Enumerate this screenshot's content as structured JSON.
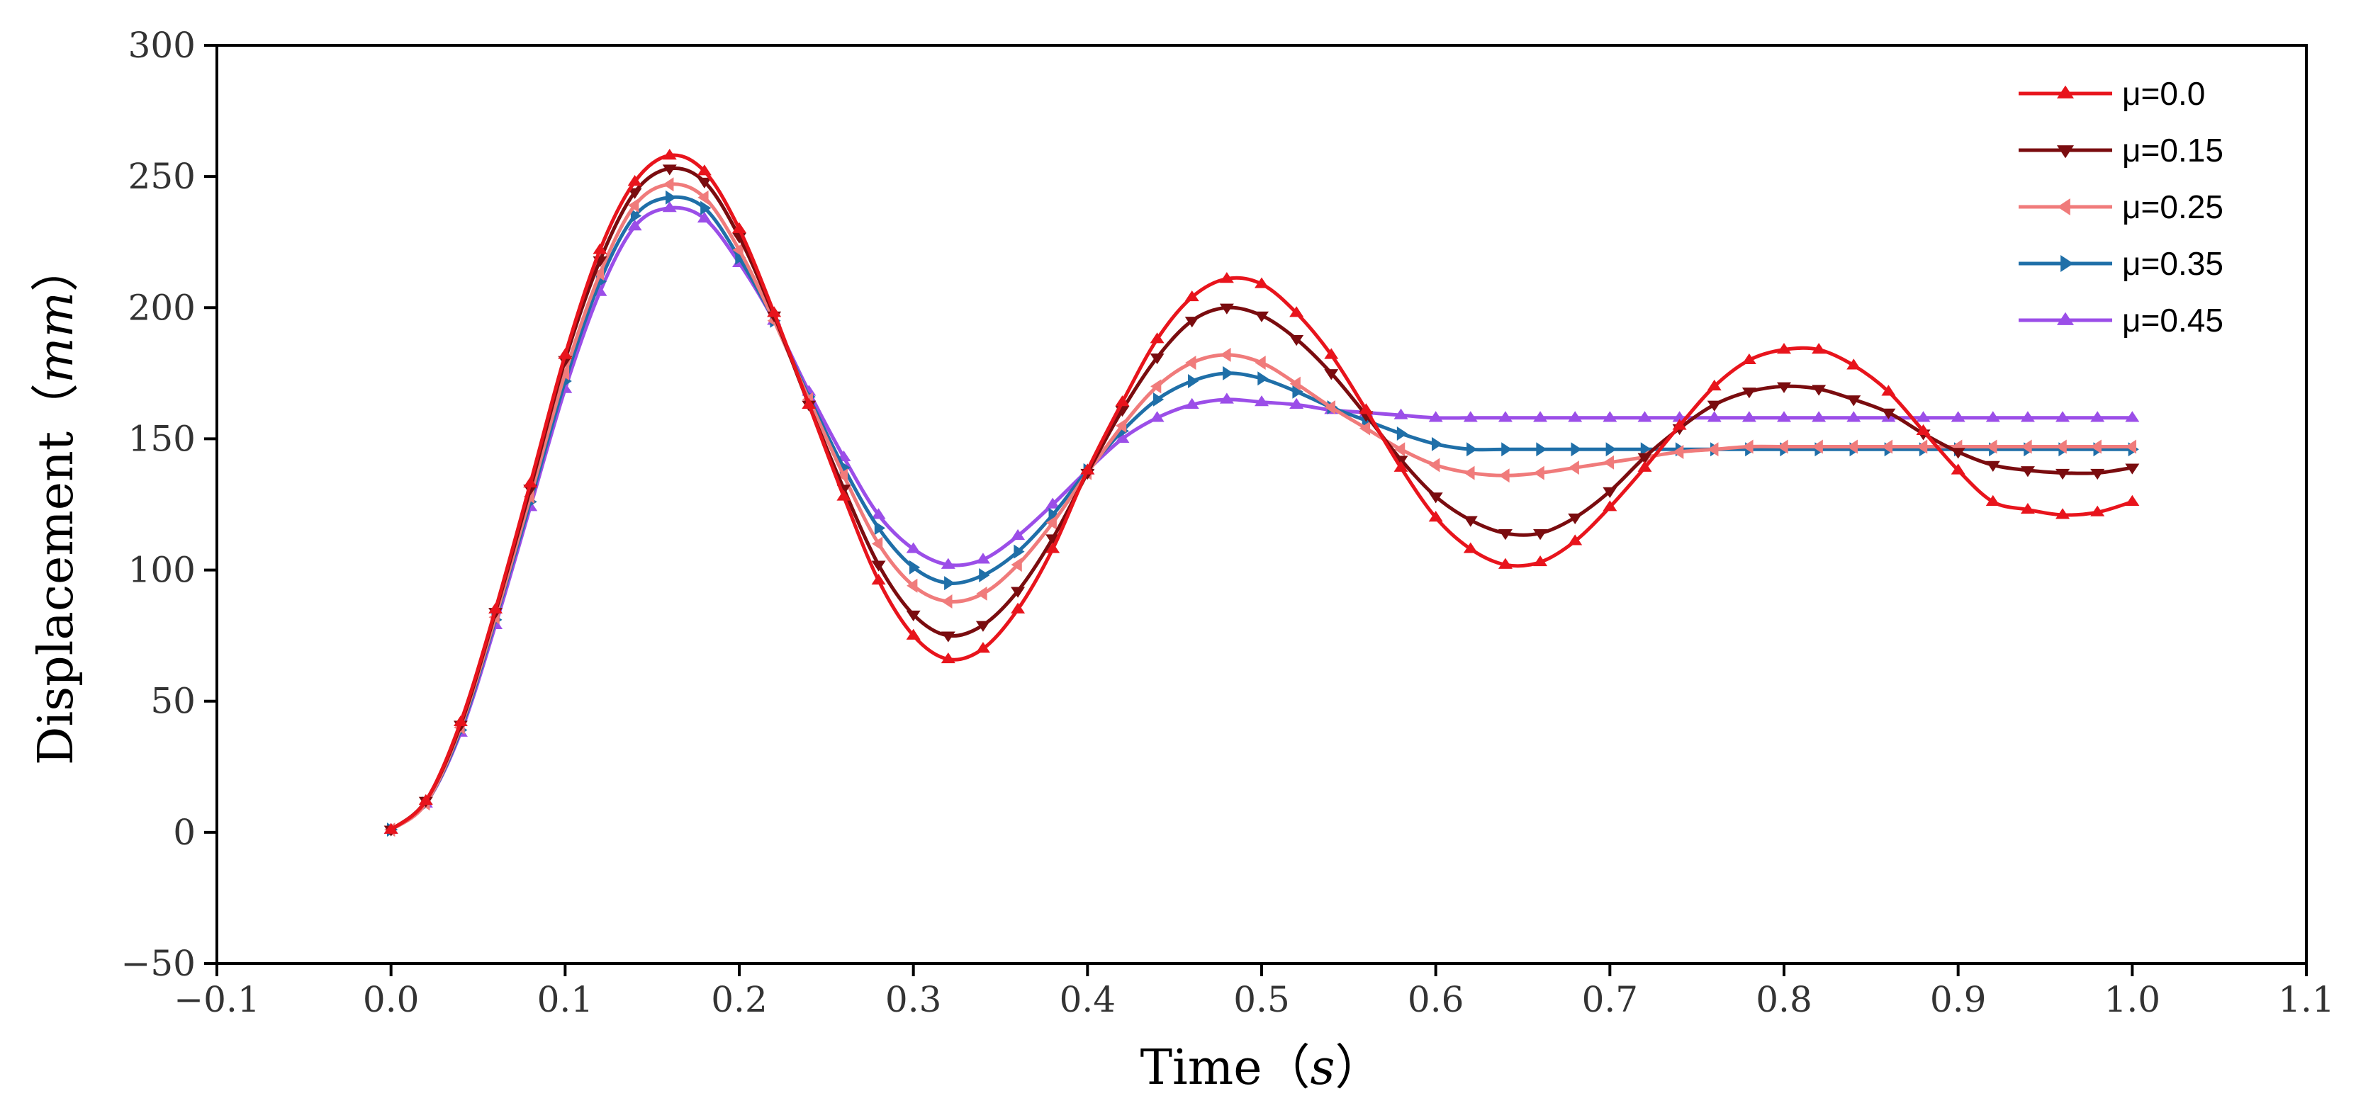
{
  "chart_data": {
    "type": "line",
    "title": "",
    "xlabel": "Time",
    "xlabel_unit": "s",
    "ylabel": "Displacement",
    "ylabel_unit": "mm",
    "xlim": [
      -0.1,
      1.1
    ],
    "ylim": [
      -50,
      300
    ],
    "xticks": [
      -0.1,
      0.0,
      0.1,
      0.2,
      0.3,
      0.4,
      0.5,
      0.6,
      0.7,
      0.8,
      0.9,
      1.0,
      1.1
    ],
    "xtick_labels": [
      "−0.1",
      "0.0",
      "0.1",
      "0.2",
      "0.3",
      "0.4",
      "0.5",
      "0.6",
      "0.7",
      "0.8",
      "0.9",
      "1.0",
      "1.1"
    ],
    "yticks": [
      -50,
      0,
      50,
      100,
      150,
      200,
      250,
      300
    ],
    "ytick_labels": [
      "−50",
      "0",
      "50",
      "100",
      "150",
      "200",
      "250",
      "300"
    ],
    "grid": false,
    "legend_position": "top-right",
    "x": [
      0.0,
      0.02,
      0.04,
      0.06,
      0.08,
      0.1,
      0.12,
      0.14,
      0.16,
      0.18,
      0.2,
      0.22,
      0.24,
      0.26,
      0.28,
      0.3,
      0.32,
      0.34,
      0.36,
      0.38,
      0.4,
      0.42,
      0.44,
      0.46,
      0.48,
      0.5,
      0.52,
      0.54,
      0.56,
      0.58,
      0.6,
      0.62,
      0.64,
      0.66,
      0.68,
      0.7,
      0.72,
      0.74,
      0.76,
      0.78,
      0.8,
      0.82,
      0.84,
      0.86,
      0.88,
      0.9,
      0.92,
      0.94,
      0.96,
      0.98,
      1.0
    ],
    "series": [
      {
        "name": "μ=0.0",
        "color": "#e8141c",
        "marker": "triangle-up",
        "values": [
          1,
          12,
          42,
          85,
          133,
          182,
          222,
          248,
          258,
          252,
          230,
          198,
          163,
          128,
          96,
          75,
          66,
          70,
          85,
          108,
          138,
          164,
          188,
          204,
          211,
          209,
          198,
          182,
          161,
          139,
          120,
          108,
          102,
          103,
          111,
          124,
          139,
          155,
          170,
          180,
          184,
          184,
          178,
          168,
          153,
          138,
          126,
          123,
          121,
          122,
          126
        ]
      },
      {
        "name": "μ=0.15",
        "color": "#7a0c0f",
        "marker": "triangle-down",
        "values": [
          1,
          12,
          41,
          84,
          131,
          180,
          218,
          244,
          253,
          248,
          227,
          197,
          163,
          131,
          102,
          83,
          75,
          79,
          92,
          112,
          137,
          161,
          181,
          195,
          200,
          197,
          188,
          175,
          159,
          142,
          128,
          119,
          114,
          114,
          120,
          130,
          143,
          154,
          163,
          168,
          170,
          169,
          165,
          160,
          152,
          145,
          140,
          138,
          137,
          137,
          139
        ]
      },
      {
        "name": "μ=0.25",
        "color": "#f07b7b",
        "marker": "triangle-left",
        "values": [
          1,
          11,
          40,
          82,
          128,
          175,
          213,
          239,
          247,
          242,
          222,
          195,
          165,
          136,
          110,
          94,
          88,
          91,
          102,
          118,
          137,
          155,
          170,
          179,
          182,
          179,
          171,
          162,
          154,
          146,
          140,
          137,
          136,
          137,
          139,
          141,
          143,
          145,
          146,
          147,
          147,
          147,
          147,
          147,
          147,
          147,
          147,
          147,
          147,
          147,
          147
        ]
      },
      {
        "name": "μ=0.35",
        "color": "#1f6fa8",
        "marker": "triangle-right",
        "values": [
          1,
          11,
          39,
          81,
          126,
          172,
          210,
          235,
          242,
          238,
          219,
          195,
          166,
          139,
          116,
          101,
          95,
          98,
          107,
          121,
          138,
          153,
          165,
          172,
          175,
          173,
          168,
          162,
          157,
          152,
          148,
          146,
          146,
          146,
          146,
          146,
          146,
          146,
          146,
          146,
          146,
          146,
          146,
          146,
          146,
          146,
          146,
          146,
          146,
          146,
          146
        ]
      },
      {
        "name": "μ=0.45",
        "color": "#9b4ee8",
        "marker": "triangle-up",
        "values": [
          1,
          11,
          38,
          79,
          124,
          169,
          206,
          231,
          238,
          234,
          217,
          195,
          168,
          143,
          121,
          108,
          102,
          104,
          113,
          125,
          138,
          150,
          158,
          163,
          165,
          164,
          163,
          161,
          160,
          159,
          158,
          158,
          158,
          158,
          158,
          158,
          158,
          158,
          158,
          158,
          158,
          158,
          158,
          158,
          158,
          158,
          158,
          158,
          158,
          158,
          158
        ]
      }
    ]
  }
}
